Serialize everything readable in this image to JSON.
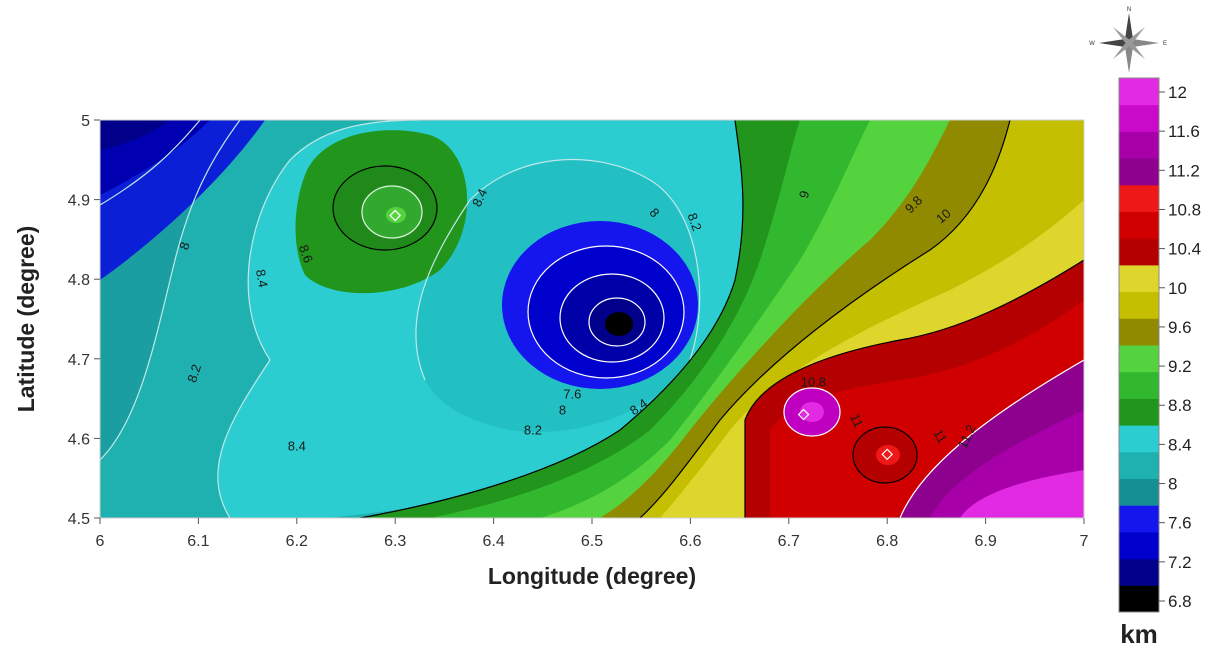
{
  "chart_data": {
    "type": "heatmap",
    "subtype": "filled-contour-map",
    "title": "",
    "xlabel": "Longitude (degree)",
    "ylabel": "Latitude (degree)",
    "xlim": [
      6,
      7
    ],
    "ylim": [
      4.5,
      5
    ],
    "x_ticks": [
      6,
      6.1,
      6.2,
      6.3,
      6.4,
      6.5,
      6.6,
      6.7,
      6.8,
      6.9,
      7
    ],
    "x_tick_labels": [
      "6",
      "6.1",
      "6.2",
      "6.3",
      "6.4",
      "6.5",
      "6.6",
      "6.7",
      "6.8",
      "6.9",
      "7"
    ],
    "y_ticks": [
      4.5,
      4.6,
      4.7,
      4.8,
      4.9,
      5
    ],
    "y_tick_labels": [
      "4.5",
      "4.6",
      "4.7",
      "4.8",
      "4.9",
      "5"
    ],
    "colorbar": {
      "unit": "km",
      "levels": [
        6.8,
        7.2,
        7.6,
        8,
        8.4,
        8.8,
        9.2,
        9.6,
        10,
        10.4,
        10.8,
        11.2,
        11.6,
        12
      ],
      "tick_labels": [
        "12",
        "11.6",
        "11.2",
        "10.8",
        "10.4",
        "10",
        "9.6",
        "9.2",
        "8.8",
        "8.4",
        "8",
        "7.6",
        "7.2",
        "6.8"
      ],
      "colors": [
        "#000000",
        "#00008b",
        "#0000cd",
        "#1515ee",
        "#168f94",
        "#1fb0b0",
        "#2bcdd0",
        "#21951c",
        "#31b82e",
        "#55d33f",
        "#8f8a00",
        "#c4bf00",
        "#ded62c",
        "#b40000",
        "#d00000",
        "#ee1818",
        "#8e008e",
        "#a800a8",
        "#c90ac9",
        "#e12ae1"
      ]
    },
    "legend_placement": "right",
    "grid": false,
    "features": [
      {
        "kind": "low",
        "x": 6.53,
        "y": 4.745,
        "value": 6.8
      },
      {
        "kind": "high",
        "x": 6.3,
        "y": 4.88,
        "value": 8.8
      },
      {
        "kind": "high",
        "x": 6.715,
        "y": 4.63,
        "value": 11
      },
      {
        "kind": "high",
        "x": 6.8,
        "y": 4.58,
        "value": 11
      }
    ],
    "contour_labels": [
      {
        "text": "8",
        "x": 6.09,
        "y": 4.84,
        "angle": -70
      },
      {
        "text": "8.4",
        "x": 6.16,
        "y": 4.8,
        "angle": 80
      },
      {
        "text": "8.6",
        "x": 6.205,
        "y": 4.83,
        "angle": 70
      },
      {
        "text": "8.2",
        "x": 6.1,
        "y": 4.68,
        "angle": -72
      },
      {
        "text": "8.4",
        "x": 6.2,
        "y": 4.585,
        "angle": 0
      },
      {
        "text": "8.4",
        "x": 6.39,
        "y": 4.9,
        "angle": -65
      },
      {
        "text": "8",
        "x": 6.56,
        "y": 4.88,
        "angle": 50
      },
      {
        "text": "8.2",
        "x": 6.6,
        "y": 4.87,
        "angle": 70
      },
      {
        "text": "9",
        "x": 6.72,
        "y": 4.905,
        "angle": -75
      },
      {
        "text": "9.8",
        "x": 6.83,
        "y": 4.89,
        "angle": -45
      },
      {
        "text": "10",
        "x": 6.86,
        "y": 4.875,
        "angle": -40
      },
      {
        "text": "7.6",
        "x": 6.48,
        "y": 4.65,
        "angle": 0
      },
      {
        "text": "8",
        "x": 6.47,
        "y": 4.63,
        "angle": 0
      },
      {
        "text": "8.2",
        "x": 6.44,
        "y": 4.605,
        "angle": 0
      },
      {
        "text": "8.4",
        "x": 6.55,
        "y": 4.635,
        "angle": -35
      },
      {
        "text": "10.8",
        "x": 6.725,
        "y": 4.665,
        "angle": 0
      },
      {
        "text": "11",
        "x": 6.765,
        "y": 4.62,
        "angle": 65
      },
      {
        "text": "11",
        "x": 6.85,
        "y": 4.6,
        "angle": 60
      },
      {
        "text": "11.2",
        "x": 6.885,
        "y": 4.6,
        "angle": -65
      }
    ]
  }
}
